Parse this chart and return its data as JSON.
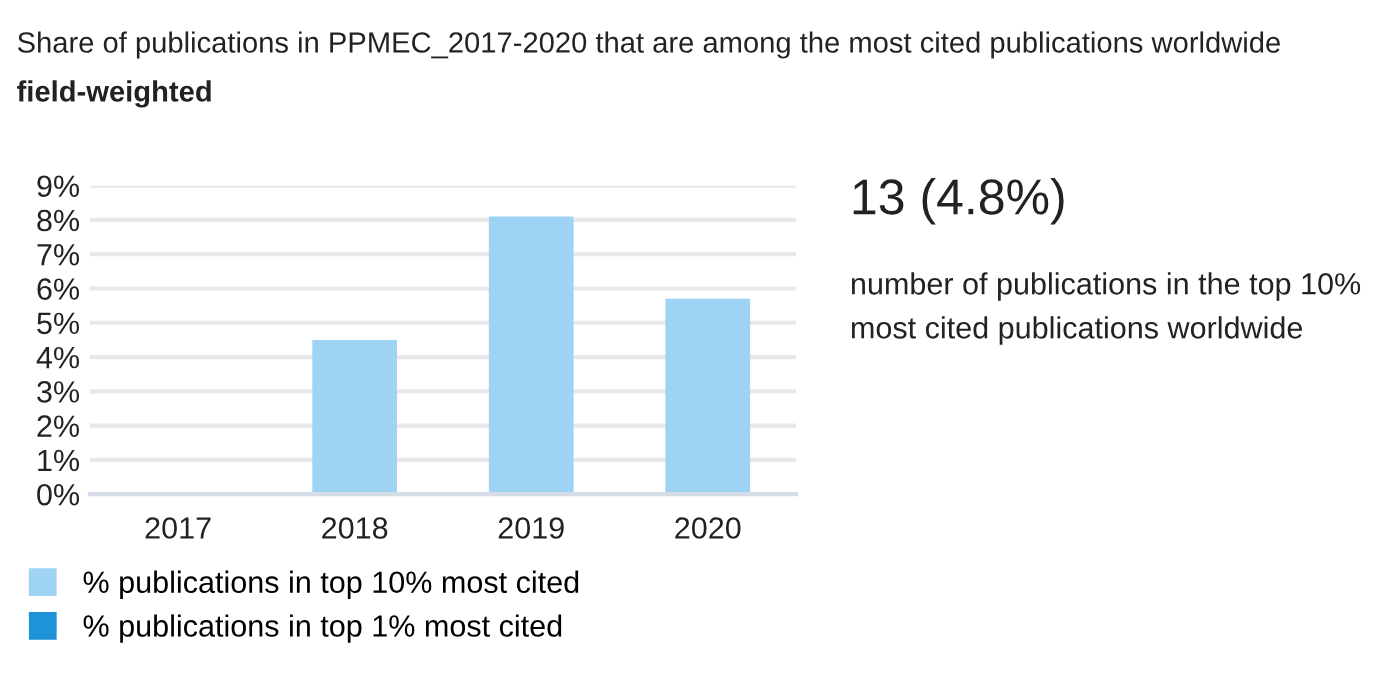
{
  "chart_data": {
    "type": "bar",
    "title": "Share of publications in PPMEC_2017-2020 that are among the most cited publications worldwide",
    "subtitle": "field-weighted",
    "categories": [
      "2017",
      "2018",
      "2019",
      "2020"
    ],
    "series": [
      {
        "name": "% publications in top 10% most cited",
        "color": "#9fd3f5",
        "values": [
          0,
          4.5,
          8.1,
          5.7
        ]
      },
      {
        "name": "% publications in top 1% most cited",
        "color": "#1f93d8",
        "values": [
          0,
          0,
          0,
          0
        ]
      }
    ],
    "stacked": true,
    "ylim": [
      0,
      9
    ],
    "yticks": [
      {
        "value": 0,
        "label": "0%"
      },
      {
        "value": 1,
        "label": "1%"
      },
      {
        "value": 2,
        "label": "2%"
      },
      {
        "value": 3,
        "label": "3%"
      },
      {
        "value": 4,
        "label": "4%"
      },
      {
        "value": 5,
        "label": "5%"
      },
      {
        "value": 6,
        "label": "6%"
      },
      {
        "value": 7,
        "label": "7%"
      },
      {
        "value": 8,
        "label": "8%"
      },
      {
        "value": 9,
        "label": "9%"
      }
    ],
    "grid": "y",
    "legend": "bottom",
    "annotations": [
      "13 (4.8%)",
      "number of publications in the top 10% most cited publications worldwide"
    ]
  }
}
